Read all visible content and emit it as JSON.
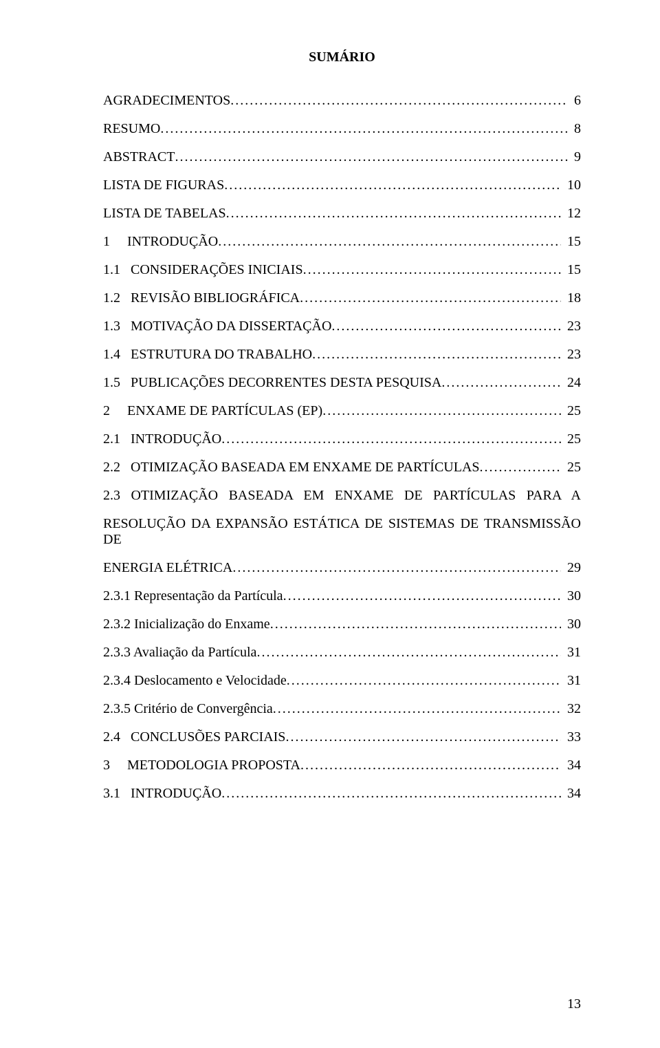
{
  "title": "SUMÁRIO",
  "pageNumber": "13",
  "dots": "..........................................................................................................................................................................................................................................................",
  "entries": [
    {
      "label": "AGRADECIMENTOS",
      "page": "6"
    },
    {
      "label": "RESUMO",
      "page": "8"
    },
    {
      "label": "ABSTRACT",
      "page": "9"
    },
    {
      "label": "LISTA DE FIGURAS",
      "page": "10"
    },
    {
      "label": "LISTA DE TABELAS",
      "page": "12"
    },
    {
      "label": "1     INTRODUÇÃO",
      "page": "15"
    },
    {
      "label": "1.1   CONSIDERAÇÕES INICIAIS",
      "page": "15"
    },
    {
      "label": "1.2   REVISÃO BIBLIOGRÁFICA",
      "page": "18"
    },
    {
      "label": "1.3   MOTIVAÇÃO DA DISSERTAÇÃO",
      "page": "23"
    },
    {
      "label": "1.4   ESTRUTURA DO TRABALHO",
      "page": "23"
    },
    {
      "label": "1.5   PUBLICAÇÕES DECORRENTES DESTA PESQUISA",
      "page": "24"
    },
    {
      "label": "2     ENXAME DE PARTÍCULAS (EP)",
      "page": "25"
    },
    {
      "label": "2.1   INTRODUÇÃO",
      "page": "25"
    },
    {
      "label": "2.2   OTIMIZAÇÃO BASEADA EM ENXAME DE PARTÍCULAS",
      "page": "25"
    },
    {
      "multiline": true,
      "prefixLines": [
        "2.3 OTIMIZAÇÃO BASEADA EM ENXAME DE PARTÍCULAS PARA A",
        "RESOLUÇÃO DA EXPANSÃO ESTÁTICA DE SISTEMAS DE TRANSMISSÃO DE"
      ],
      "lastLabel": "ENERGIA ELÉTRICA",
      "page": "29"
    },
    {
      "label": "2.3.1 Representação da Partícula",
      "page": "30"
    },
    {
      "label": "2.3.2 Inicialização do Enxame",
      "page": "30"
    },
    {
      "label": "2.3.3 Avaliação da Partícula",
      "page": "31"
    },
    {
      "label": "2.3.4 Deslocamento e Velocidade",
      "page": "31"
    },
    {
      "label": "2.3.5 Critério de Convergência",
      "page": "32"
    },
    {
      "label": "2.4   CONCLUSÕES PARCIAIS",
      "page": "33"
    },
    {
      "label": "3     METODOLOGIA PROPOSTA",
      "page": "34"
    },
    {
      "label": "3.1   INTRODUÇÃO",
      "page": "34"
    }
  ]
}
